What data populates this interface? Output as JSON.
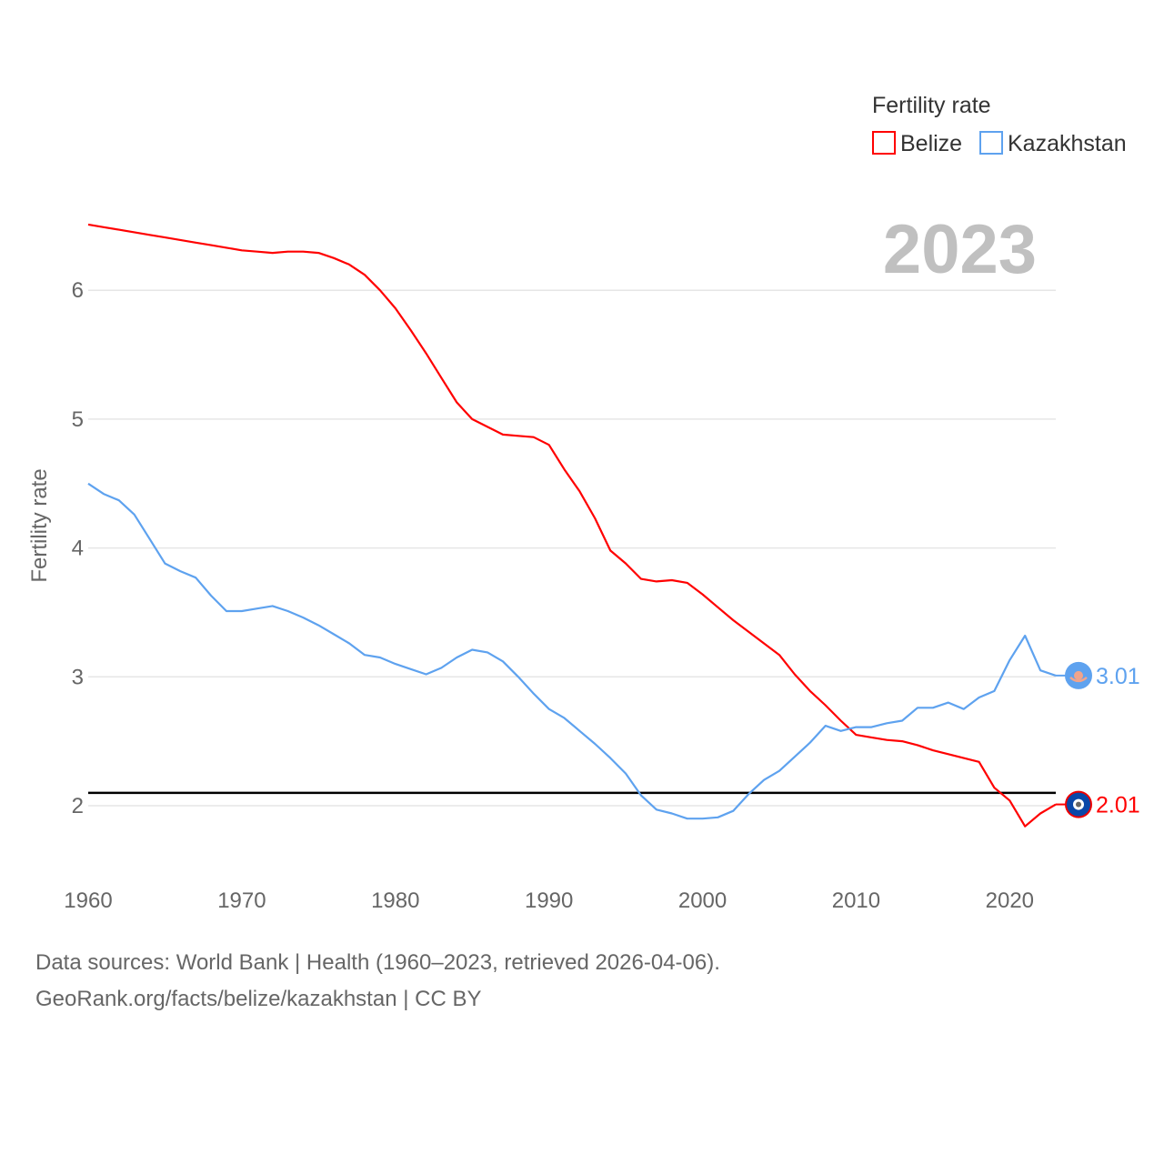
{
  "chart_data": {
    "type": "line",
    "ylabel": "Fertility rate",
    "xlabel": "",
    "year_label": "2023",
    "legend": {
      "title": "Fertility rate",
      "placement": "top-right"
    },
    "xlim": [
      1960,
      2023
    ],
    "ylim": [
      1.5,
      6.7
    ],
    "xticks": [
      1960,
      1970,
      1980,
      1990,
      2000,
      2010,
      2020
    ],
    "yticks": [
      2,
      3,
      4,
      5,
      6
    ],
    "reference_line": 2.1,
    "grid": true,
    "x": [
      1960,
      1961,
      1962,
      1963,
      1964,
      1965,
      1966,
      1967,
      1968,
      1969,
      1970,
      1971,
      1972,
      1973,
      1974,
      1975,
      1976,
      1977,
      1978,
      1979,
      1980,
      1981,
      1982,
      1983,
      1984,
      1985,
      1986,
      1987,
      1988,
      1989,
      1990,
      1991,
      1992,
      1993,
      1994,
      1995,
      1996,
      1997,
      1998,
      1999,
      2000,
      2001,
      2002,
      2003,
      2004,
      2005,
      2006,
      2007,
      2008,
      2009,
      2010,
      2011,
      2012,
      2013,
      2014,
      2015,
      2016,
      2017,
      2018,
      2019,
      2020,
      2021,
      2022,
      2023
    ],
    "series": [
      {
        "name": "Belize",
        "color": "#ff0000",
        "end_label": "2.01",
        "values": [
          6.51,
          6.49,
          6.47,
          6.45,
          6.43,
          6.41,
          6.39,
          6.37,
          6.35,
          6.33,
          6.31,
          6.3,
          6.29,
          6.3,
          6.3,
          6.29,
          6.25,
          6.2,
          6.12,
          6.0,
          5.86,
          5.69,
          5.51,
          5.32,
          5.13,
          5.0,
          4.94,
          4.88,
          4.87,
          4.86,
          4.8,
          4.61,
          4.44,
          4.23,
          3.98,
          3.88,
          3.76,
          3.74,
          3.75,
          3.73,
          3.64,
          3.54,
          3.44,
          3.35,
          3.26,
          3.17,
          3.02,
          2.89,
          2.78,
          2.66,
          2.55,
          2.53,
          2.51,
          2.5,
          2.47,
          2.43,
          2.4,
          2.37,
          2.34,
          2.14,
          2.04,
          1.84,
          1.94,
          2.01
        ]
      },
      {
        "name": "Kazakhstan",
        "color": "#5ea2ef",
        "end_label": "3.01",
        "values": [
          4.5,
          4.42,
          4.37,
          4.26,
          4.07,
          3.88,
          3.82,
          3.77,
          3.63,
          3.51,
          3.51,
          3.53,
          3.55,
          3.51,
          3.46,
          3.4,
          3.33,
          3.26,
          3.17,
          3.15,
          3.1,
          3.06,
          3.02,
          3.07,
          3.15,
          3.21,
          3.19,
          3.12,
          3.0,
          2.87,
          2.75,
          2.68,
          2.58,
          2.48,
          2.37,
          2.25,
          2.08,
          1.97,
          1.94,
          1.9,
          1.9,
          1.91,
          1.96,
          2.09,
          2.2,
          2.27,
          2.38,
          2.49,
          2.62,
          2.58,
          2.61,
          2.61,
          2.64,
          2.66,
          2.76,
          2.76,
          2.8,
          2.75,
          2.84,
          2.89,
          3.13,
          3.32,
          3.05,
          3.01
        ]
      }
    ]
  },
  "footer": {
    "line1": "Data sources: World Bank | Health (1960–2023, retrieved 2026-04-06).",
    "line2": "GeoRank.org/facts/belize/kazakhstan | CC BY"
  }
}
